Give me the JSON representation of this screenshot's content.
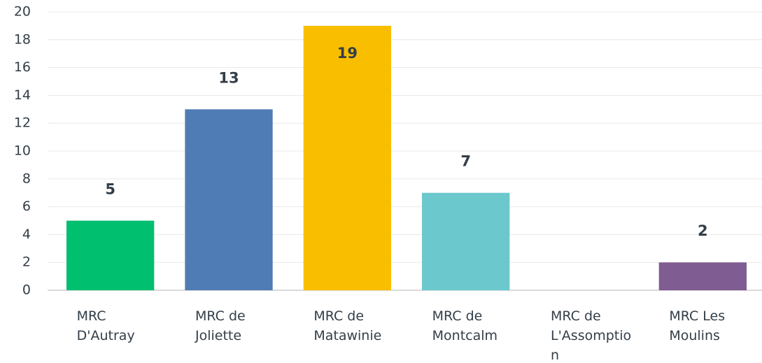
{
  "chart_data": {
    "type": "bar",
    "categories": [
      "MRC D'Autray",
      "MRC de Joliette",
      "MRC de Matawinie",
      "MRC de Montcalm",
      "MRC de L'Assomption",
      "MRC Les Moulins"
    ],
    "values": [
      5,
      13,
      19,
      7,
      0,
      2
    ],
    "colors": [
      "#00bf6f",
      "#507cb6",
      "#f9be00",
      "#6bc8cd",
      "#a1a3a5",
      "#7f5c91"
    ],
    "ylim": [
      0,
      20
    ],
    "yticks": [
      0,
      2,
      4,
      6,
      8,
      10,
      12,
      14,
      16,
      18,
      20
    ],
    "grid": true
  }
}
